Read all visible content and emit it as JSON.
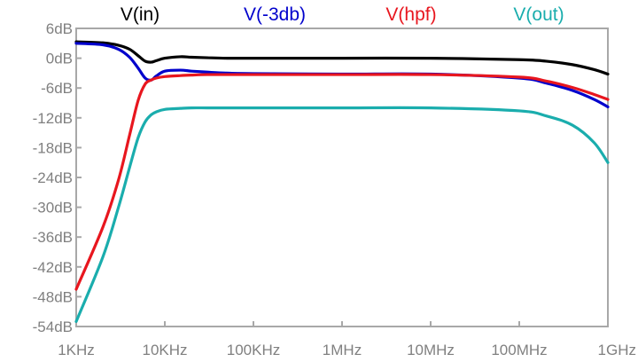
{
  "chart_data": {
    "type": "line",
    "x_scale": "log",
    "xlim": [
      "1KHz",
      "1GHz"
    ],
    "ylim": [
      -54,
      6
    ],
    "grid": false,
    "legend_position": "top",
    "x_ticks": [
      "1KHz",
      "10KHz",
      "100KHz",
      "1MHz",
      "10MHz",
      "100MHz",
      "1GHz"
    ],
    "y_ticks": [
      "6dB",
      "0dB",
      "-6dB",
      "-12dB",
      "-18dB",
      "-24dB",
      "-30dB",
      "-36dB",
      "-42dB",
      "-48dB",
      "-54dB"
    ],
    "series": [
      {
        "name": "V(in)",
        "color": "#000000",
        "x": [
          "1KHz",
          "2KHz",
          "3KHz",
          "4KHz",
          "5KHz",
          "6KHz",
          "7KHz",
          "8KHz",
          "10KHz",
          "15KHz",
          "20KHz",
          "30KHz",
          "50KHz",
          "100KHz",
          "1MHz",
          "10MHz",
          "100MHz",
          "200MHz",
          "400MHz",
          "700MHz",
          "1GHz"
        ],
        "y": [
          3.3,
          3.1,
          2.6,
          1.8,
          0.5,
          -0.6,
          -0.8,
          -0.5,
          0.0,
          0.3,
          0.2,
          0.1,
          0.0,
          0.0,
          0.0,
          0.0,
          -0.3,
          -0.6,
          -1.3,
          -2.3,
          -3.2
        ]
      },
      {
        "name": "V(-3db)",
        "color": "#0000cc",
        "x": [
          "1KHz",
          "2KHz",
          "3KHz",
          "4KHz",
          "5KHz",
          "6KHz",
          "7KHz",
          "8KHz",
          "10KHz",
          "15KHz",
          "20KHz",
          "30KHz",
          "50KHz",
          "100KHz",
          "1MHz",
          "10MHz",
          "100MHz",
          "200MHz",
          "400MHz",
          "700MHz",
          "1GHz"
        ],
        "y": [
          3.0,
          2.7,
          1.8,
          0.2,
          -2.0,
          -4.0,
          -4.4,
          -3.6,
          -2.6,
          -2.4,
          -2.6,
          -2.8,
          -3.0,
          -3.1,
          -3.2,
          -3.2,
          -4.0,
          -5.0,
          -6.5,
          -8.3,
          -9.8
        ]
      },
      {
        "name": "V(hpf)",
        "color": "#e8161e",
        "x": [
          "1KHz",
          "2KHz",
          "3KHz",
          "4KHz",
          "5KHz",
          "6KHz",
          "7KHz",
          "8KHz",
          "10KHz",
          "15KHz",
          "20KHz",
          "30KHz",
          "50KHz",
          "100KHz",
          "1MHz",
          "10MHz",
          "100MHz",
          "200MHz",
          "400MHz",
          "700MHz",
          "1GHz"
        ],
        "y": [
          -46.5,
          -34.0,
          -24.5,
          -15.5,
          -8.5,
          -5.2,
          -4.4,
          -4.0,
          -3.7,
          -3.5,
          -3.4,
          -3.3,
          -3.3,
          -3.3,
          -3.3,
          -3.3,
          -3.8,
          -4.6,
          -5.9,
          -7.3,
          -8.3
        ]
      },
      {
        "name": "V(out)",
        "color": "#1aadad",
        "x": [
          "1KHz",
          "2KHz",
          "3KHz",
          "4KHz",
          "5KHz",
          "6KHz",
          "7KHz",
          "8KHz",
          "10KHz",
          "15KHz",
          "20KHz",
          "30KHz",
          "50KHz",
          "100KHz",
          "1MHz",
          "10MHz",
          "100MHz",
          "200MHz",
          "400MHz",
          "700MHz",
          "1GHz"
        ],
        "y": [
          -53.0,
          -40.0,
          -30.0,
          -22.0,
          -16.0,
          -12.8,
          -11.4,
          -10.8,
          -10.3,
          -10.1,
          -10.0,
          -10.0,
          -10.0,
          -10.0,
          -10.0,
          -10.0,
          -10.6,
          -11.6,
          -13.5,
          -17.0,
          -21.0
        ]
      }
    ]
  }
}
